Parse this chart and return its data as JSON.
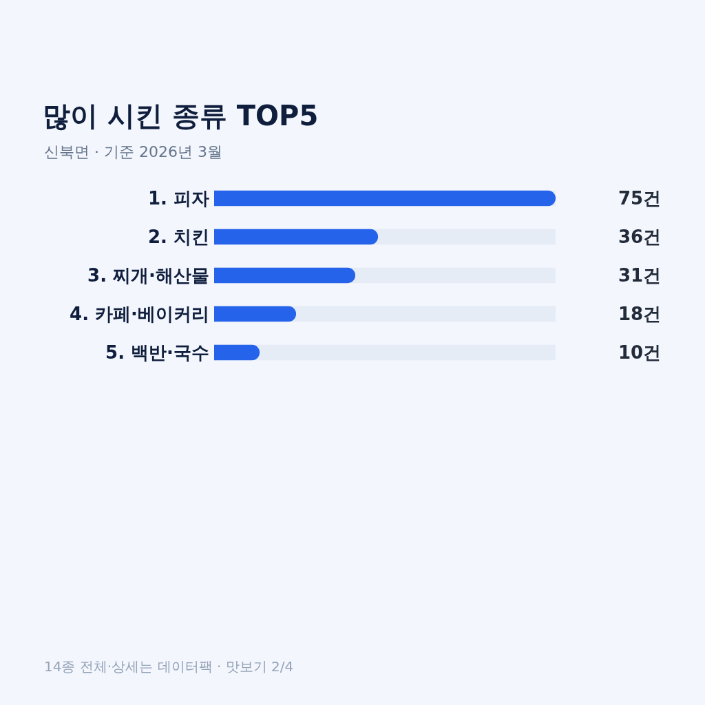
{
  "chart_data": {
    "type": "bar",
    "orientation": "horizontal",
    "title": "많이 시킨 종류 TOP5",
    "subtitle": "신북면 · 기준 2026년 3월",
    "categories": [
      "1. 피자",
      "2. 치킨",
      "3. 찌개·해산물",
      "4. 카페·베이커리",
      "5. 백반·국수"
    ],
    "values": [
      75,
      36,
      31,
      18,
      10
    ],
    "value_labels": [
      "75건",
      "36건",
      "31건",
      "18건",
      "10건"
    ],
    "color": "#2563eb",
    "xlim": [
      0,
      75
    ],
    "tick_labels": "y",
    "grid": false,
    "legend": false,
    "annotations": [
      "14종 전체·상세는 데이터팩 · 맛보기 2/4"
    ]
  }
}
